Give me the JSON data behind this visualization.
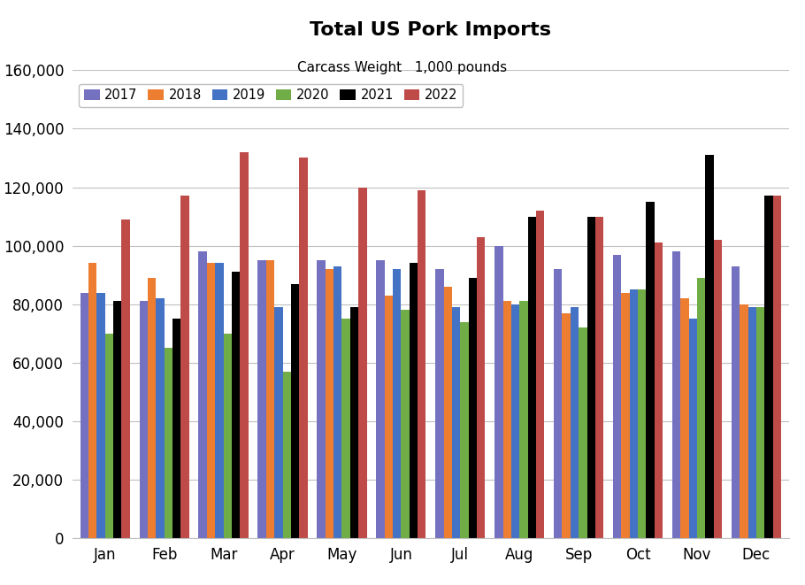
{
  "title": "Total US Pork Imports",
  "subtitle": "Carcass Weight   1,000 pounds",
  "months": [
    "Jan",
    "Feb",
    "Mar",
    "Apr",
    "May",
    "Jun",
    "Jul",
    "Aug",
    "Sep",
    "Oct",
    "Nov",
    "Dec"
  ],
  "series": {
    "2017": [
      84000,
      81000,
      98000,
      95000,
      95000,
      95000,
      92000,
      100000,
      92000,
      97000,
      98000,
      93000
    ],
    "2018": [
      94000,
      89000,
      94000,
      95000,
      92000,
      83000,
      86000,
      81000,
      77000,
      84000,
      82000,
      80000
    ],
    "2019": [
      84000,
      82000,
      94000,
      79000,
      93000,
      92000,
      79000,
      80000,
      79000,
      85000,
      75000,
      79000
    ],
    "2020": [
      70000,
      65000,
      70000,
      57000,
      75000,
      78000,
      74000,
      81000,
      72000,
      85000,
      89000,
      79000
    ],
    "2021": [
      81000,
      75000,
      91000,
      87000,
      79000,
      94000,
      89000,
      110000,
      110000,
      115000,
      131000,
      117000
    ],
    "2022": [
      109000,
      117000,
      132000,
      130000,
      120000,
      119000,
      103000,
      112000,
      110000,
      101000,
      102000,
      117000
    ]
  },
  "colors": {
    "2017": "#7472C0",
    "2018": "#ED7D31",
    "2019": "#4472C4",
    "2020": "#70AD47",
    "2021": "#000000",
    "2022": "#BE4B48"
  },
  "ylim": [
    0,
    160000
  ],
  "yticks": [
    0,
    20000,
    40000,
    60000,
    80000,
    100000,
    120000,
    140000,
    160000
  ],
  "background_color": "#FFFFFF",
  "grid_color": "#C0C0C0"
}
